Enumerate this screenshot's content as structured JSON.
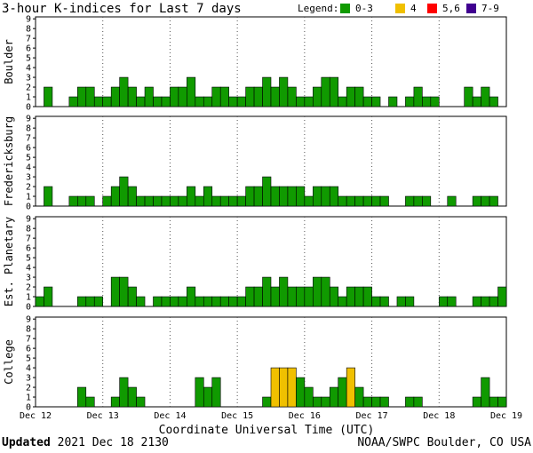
{
  "title": "3-hour K-indices for Last 7 days",
  "legend": {
    "label": "Legend:",
    "items": [
      {
        "label": "0-3",
        "color": "#109a00"
      },
      {
        "label": "4",
        "color": "#f0c000"
      },
      {
        "label": "5,6",
        "color": "#ff0000"
      },
      {
        "label": "7-9",
        "color": "#400090"
      }
    ]
  },
  "footer": {
    "updated_label": "Updated",
    "updated_value": "2021 Dec 18 2130",
    "source": "NOAA/SWPC Boulder, CO USA"
  },
  "chart_data": {
    "type": "bar",
    "xlabel": "Coordinate Universal Time (UTC)",
    "x_ticks": [
      "Dec 12",
      "Dec 13",
      "Dec 14",
      "Dec 15",
      "Dec 16",
      "Dec 17",
      "Dec 18",
      "Dec 19"
    ],
    "ylim": [
      0,
      9
    ],
    "y_ticks": [
      0,
      1,
      2,
      3,
      4,
      5,
      6,
      7,
      8,
      9
    ],
    "grid": "dotted",
    "bins_per_day": 8,
    "color_scale": {
      "0-3": "#109a00",
      "4": "#f0c000",
      "5,6": "#ff0000",
      "7-9": "#400090"
    },
    "panels": [
      {
        "name": "Boulder",
        "values": [
          0,
          2,
          0,
          0,
          1,
          2,
          2,
          1,
          1,
          2,
          3,
          2,
          1,
          2,
          1,
          1,
          2,
          2,
          3,
          1,
          1,
          2,
          2,
          1,
          1,
          2,
          2,
          3,
          2,
          3,
          2,
          1,
          1,
          2,
          3,
          3,
          1,
          2,
          2,
          1,
          1,
          0,
          1,
          0,
          1,
          2,
          1,
          1,
          0,
          0,
          0,
          2,
          1,
          2,
          1,
          0
        ]
      },
      {
        "name": "Fredericksburg",
        "values": [
          0,
          2,
          0,
          0,
          1,
          1,
          1,
          0,
          1,
          2,
          3,
          2,
          1,
          1,
          1,
          1,
          1,
          1,
          2,
          1,
          2,
          1,
          1,
          1,
          1,
          2,
          2,
          3,
          2,
          2,
          2,
          2,
          1,
          2,
          2,
          2,
          1,
          1,
          1,
          1,
          1,
          1,
          0,
          0,
          1,
          1,
          1,
          0,
          0,
          1,
          0,
          0,
          1,
          1,
          1,
          0
        ]
      },
      {
        "name": "Est. Planetary",
        "values": [
          1,
          2,
          0,
          0,
          0,
          1,
          1,
          1,
          0,
          3,
          3,
          2,
          1,
          0,
          1,
          1,
          1,
          1,
          2,
          1,
          1,
          1,
          1,
          1,
          1,
          2,
          2,
          3,
          2,
          3,
          2,
          2,
          2,
          3,
          3,
          2,
          1,
          2,
          2,
          2,
          1,
          1,
          0,
          1,
          1,
          0,
          0,
          0,
          1,
          1,
          0,
          0,
          1,
          1,
          1,
          2
        ]
      },
      {
        "name": "College",
        "values": [
          0,
          0,
          0,
          0,
          0,
          2,
          1,
          0,
          0,
          1,
          3,
          2,
          1,
          0,
          0,
          0,
          0,
          0,
          0,
          3,
          2,
          3,
          0,
          0,
          0,
          0,
          0,
          1,
          4,
          4,
          4,
          3,
          2,
          1,
          1,
          2,
          3,
          4,
          2,
          1,
          1,
          1,
          0,
          0,
          1,
          1,
          0,
          0,
          0,
          0,
          0,
          0,
          1,
          3,
          1,
          1
        ]
      }
    ]
  }
}
